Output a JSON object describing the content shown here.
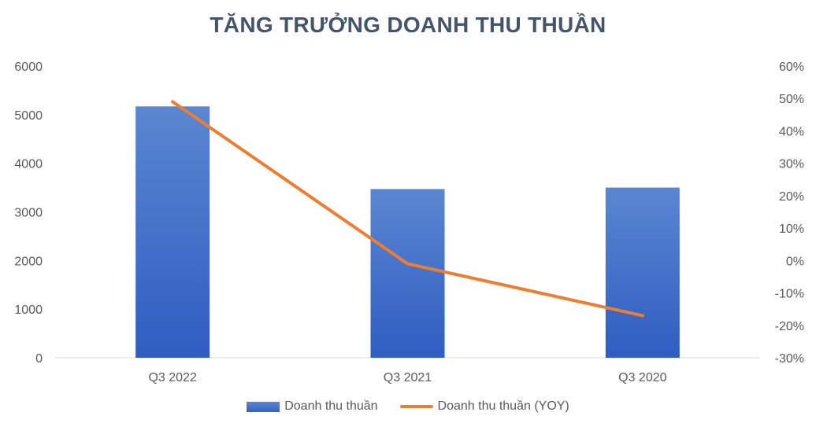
{
  "chart_data": {
    "type": "bar",
    "title": "TĂNG TRƯỞNG DOANH THU THUẦN",
    "categories": [
      "Q3 2022",
      "Q3 2021",
      "Q3 2020"
    ],
    "series": [
      {
        "name": "Doanh thu thuần",
        "type": "bar",
        "axis": "left",
        "color": "#4472c4",
        "values": [
          5170,
          3470,
          3500
        ]
      },
      {
        "name": "Doanh thu thuần (YOY)",
        "type": "line",
        "axis": "right",
        "color": "#ed7d31",
        "values": [
          0.49,
          -0.01,
          -0.17
        ]
      }
    ],
    "ylim": [
      0,
      6000
    ],
    "yticks": [
      "0",
      "1000",
      "2000",
      "3000",
      "4000",
      "5000",
      "6000"
    ],
    "y2lim": [
      -0.3,
      0.6
    ],
    "y2ticks": [
      "-30%",
      "-20%",
      "-10%",
      "0%",
      "10%",
      "20%",
      "30%",
      "40%",
      "50%",
      "60%"
    ],
    "grid": false,
    "legend_position": "bottom"
  }
}
